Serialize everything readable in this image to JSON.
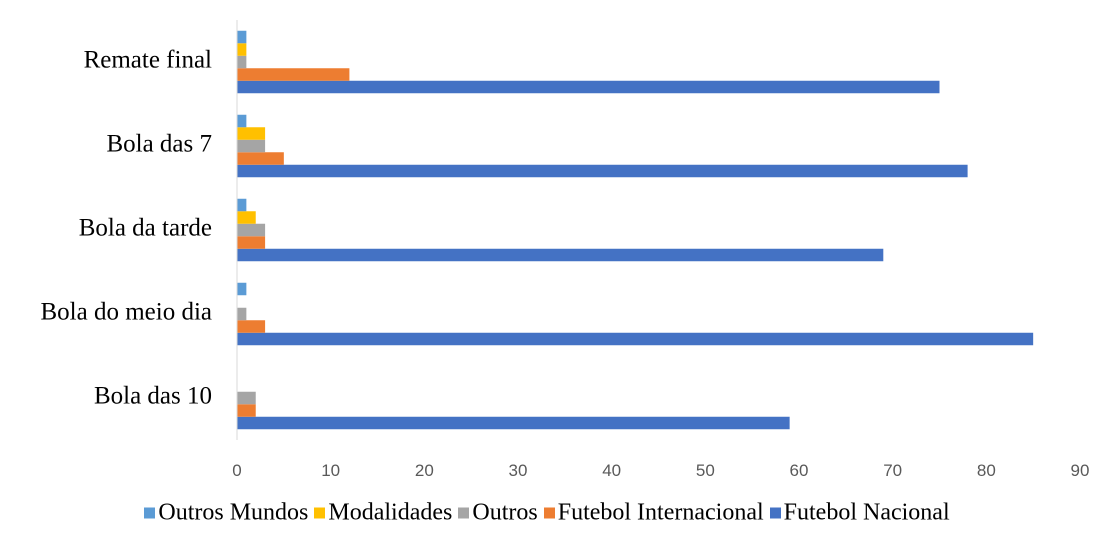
{
  "chart_data": {
    "type": "bar",
    "orientation": "horizontal",
    "categories": [
      "Bola das 10",
      "Bola do meio dia",
      "Bola da tarde",
      "Bola das 7",
      "Remate final"
    ],
    "series": [
      {
        "name": "Futebol Nacional",
        "color": "#4472C4",
        "values": [
          59,
          85,
          69,
          78,
          75
        ]
      },
      {
        "name": "Futebol Internacional",
        "color": "#ED7D31",
        "values": [
          2,
          3,
          3,
          5,
          12
        ]
      },
      {
        "name": "Outros",
        "color": "#A5A5A5",
        "values": [
          2,
          1,
          3,
          3,
          1
        ]
      },
      {
        "name": "Modalidades",
        "color": "#FFC000",
        "values": [
          0,
          0,
          2,
          3,
          1
        ]
      },
      {
        "name": "Outros Mundos",
        "color": "#5B9BD5",
        "values": [
          0,
          1,
          1,
          1,
          1
        ]
      }
    ],
    "legend_order": [
      "Outros Mundos",
      "Modalidades",
      "Outros",
      "Futebol Internacional",
      "Futebol Nacional"
    ],
    "xlim": [
      0,
      90
    ],
    "xticks": [
      0,
      10,
      20,
      30,
      40,
      50,
      60,
      70,
      80,
      90
    ],
    "title": "",
    "xlabel": "",
    "ylabel": "",
    "grid": false,
    "legend_position": "bottom"
  }
}
